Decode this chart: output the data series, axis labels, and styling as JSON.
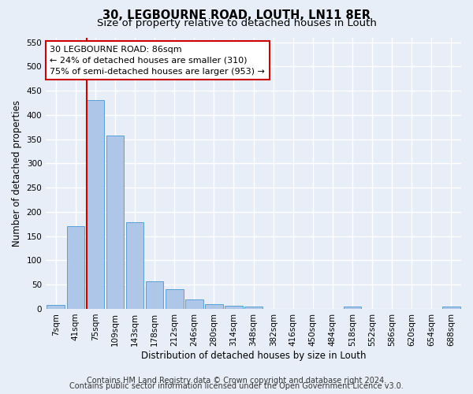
{
  "title1": "30, LEGBOURNE ROAD, LOUTH, LN11 8ER",
  "title2": "Size of property relative to detached houses in Louth",
  "xlabel": "Distribution of detached houses by size in Louth",
  "ylabel": "Number of detached properties",
  "bar_labels": [
    "7sqm",
    "41sqm",
    "75sqm",
    "109sqm",
    "143sqm",
    "178sqm",
    "212sqm",
    "246sqm",
    "280sqm",
    "314sqm",
    "348sqm",
    "382sqm",
    "416sqm",
    "450sqm",
    "484sqm",
    "518sqm",
    "552sqm",
    "586sqm",
    "620sqm",
    "654sqm",
    "688sqm"
  ],
  "bar_values": [
    8,
    170,
    430,
    357,
    178,
    57,
    40,
    20,
    10,
    6,
    5,
    0,
    0,
    0,
    0,
    5,
    0,
    0,
    0,
    0,
    5
  ],
  "bar_color": "#aec6e8",
  "bar_edgecolor": "#5a9fd4",
  "vline_color": "#cc0000",
  "annotation_text": "30 LEGBOURNE ROAD: 86sqm\n← 24% of detached houses are smaller (310)\n75% of semi-detached houses are larger (953) →",
  "annotation_box_edgecolor": "#cc0000",
  "annotation_box_facecolor": "#ffffff",
  "ylim": [
    0,
    560
  ],
  "yticks": [
    0,
    50,
    100,
    150,
    200,
    250,
    300,
    350,
    400,
    450,
    500,
    550
  ],
  "footer1": "Contains HM Land Registry data © Crown copyright and database right 2024.",
  "footer2": "Contains public sector information licensed under the Open Government Licence v3.0.",
  "bg_color": "#e8eef8",
  "grid_color": "#ffffff",
  "title1_fontsize": 10.5,
  "title2_fontsize": 9.5,
  "axis_label_fontsize": 8.5,
  "tick_fontsize": 7.5,
  "annotation_fontsize": 8,
  "footer_fontsize": 7
}
